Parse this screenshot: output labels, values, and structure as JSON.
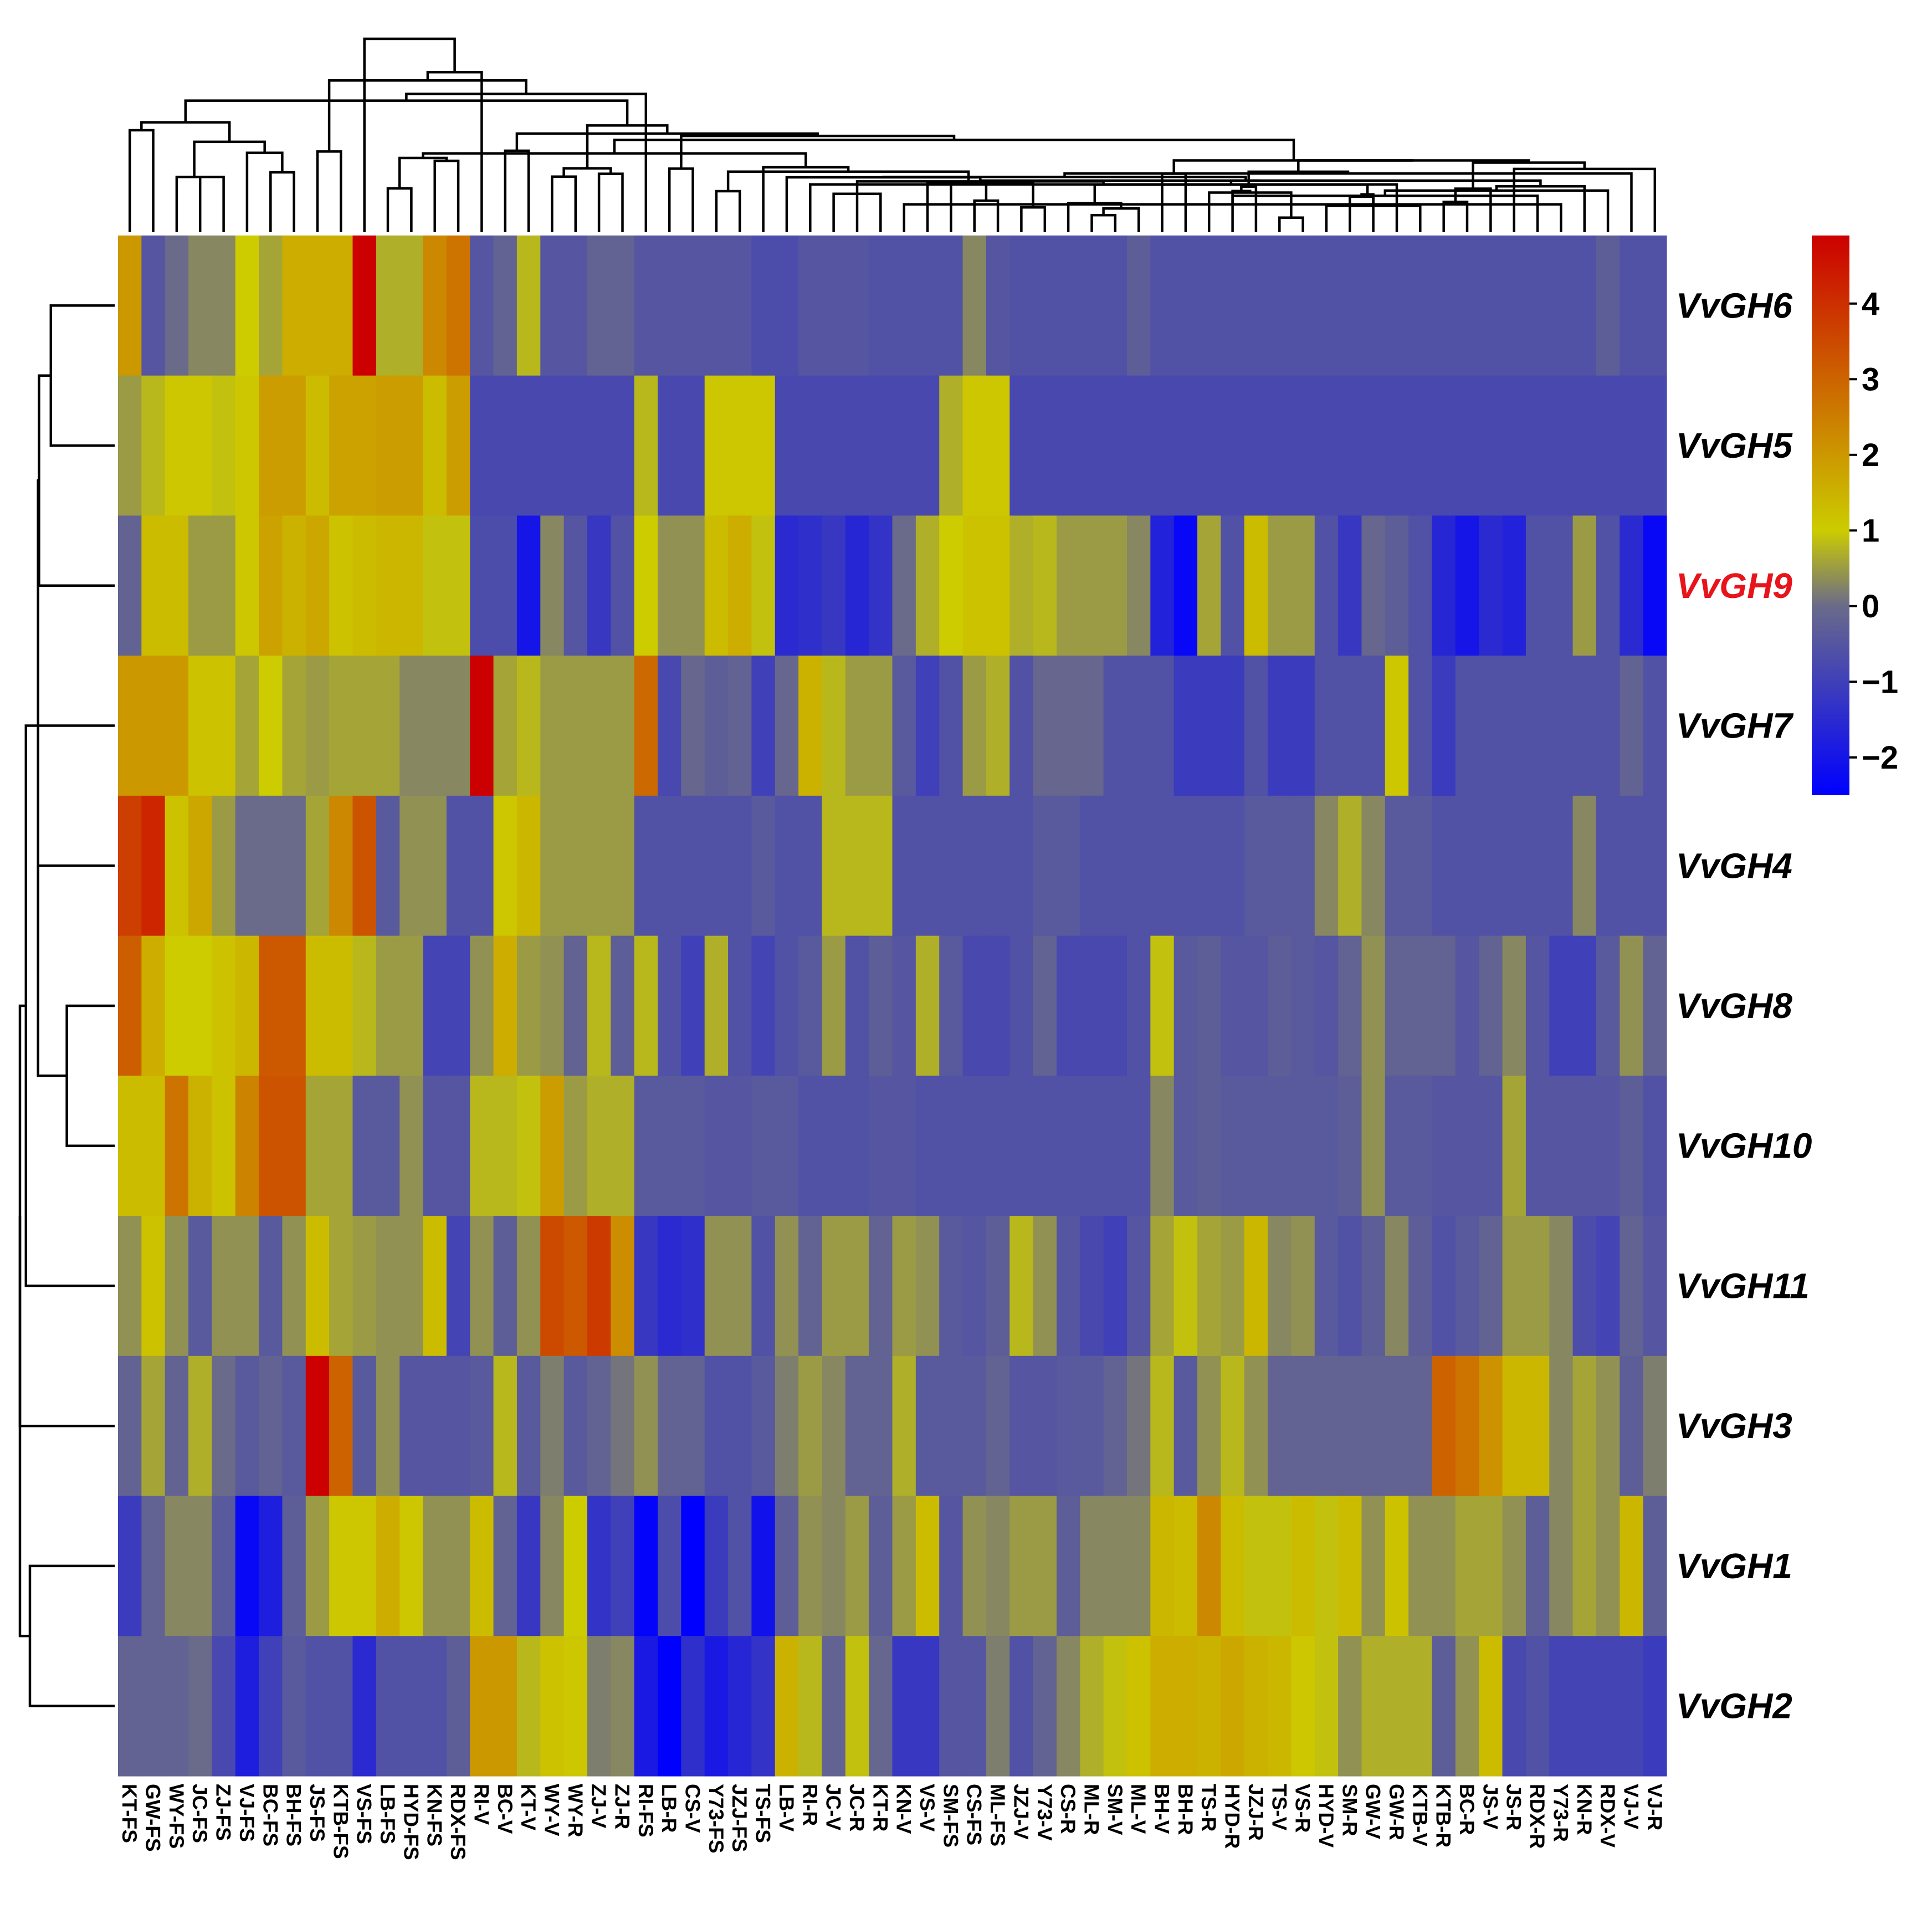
{
  "chart_data": {
    "type": "heatmap",
    "title": "",
    "rows": [
      "VvGH6",
      "VvGH5",
      "VvGH9",
      "VvGH7",
      "VvGH4",
      "VvGH8",
      "VvGH10",
      "VvGH11",
      "VvGH3",
      "VvGH1",
      "VvGH2"
    ],
    "highlighted_row": "VvGH9",
    "highlight_color": "#e8141b",
    "columns": [
      "KT-FS",
      "GW-FS",
      "WY-FS",
      "JC-FS",
      "ZJ-FS",
      "VJ-FS",
      "BC-FS",
      "BH-FS",
      "JS-FS",
      "KTB-FS",
      "VS-FS",
      "LB-FS",
      "HYD-FS",
      "KN-FS",
      "RDX-FS",
      "RI-V",
      "BC-V",
      "KT-V",
      "WY-V",
      "WY-R",
      "ZJ-V",
      "ZJ-R",
      "RI-FS",
      "LB-R",
      "CS-V",
      "Y73-FS",
      "JZJ-FS",
      "TS-FS",
      "LB-V",
      "RI-R",
      "JC-V",
      "JC-R",
      "KT-R",
      "KN-V",
      "VS-V",
      "SM-FS",
      "CS-FS",
      "ML-FS",
      "JZJ-V",
      "Y73-V",
      "CS-R",
      "ML-R",
      "SM-V",
      "ML-V",
      "BH-V",
      "BH-R",
      "TS-R",
      "HYD-R",
      "JZJ-R",
      "TS-V",
      "VS-R",
      "HYD-V",
      "SM-R",
      "GW-V",
      "GW-R",
      "KTB-V",
      "KTB-R",
      "BC-R",
      "JS-V",
      "JS-R",
      "RDX-R",
      "Y73-R",
      "KN-R",
      "RDX-V",
      "VJ-V",
      "VJ-R"
    ],
    "values": [
      [
        2,
        -0.5,
        0,
        0.3,
        0.3,
        1,
        0.6,
        1.6,
        1.6,
        1.6,
        5,
        0.7,
        0.7,
        2.3,
        2.7,
        -0.5,
        -0.2,
        0.8,
        -0.5,
        -0.5,
        -0.2,
        -0.2,
        -0.5,
        -0.5,
        -0.5,
        -0.5,
        -0.5,
        -0.7,
        -0.7,
        -0.5,
        -0.5,
        -0.5,
        -0.6,
        -0.6,
        -0.6,
        -0.6,
        0.3,
        -0.5,
        -0.6,
        -0.6,
        -0.6,
        -0.6,
        -0.6,
        -0.3,
        -0.6,
        -0.6,
        -0.6,
        -0.6,
        -0.6,
        -0.6,
        -0.6,
        -0.6,
        -0.6,
        -0.6,
        -0.6,
        -0.6,
        -0.6,
        -0.6,
        -0.6,
        -0.6,
        -0.6,
        -0.6,
        -0.6,
        -0.3,
        -0.6,
        -0.6
      ],
      [
        0.5,
        0.8,
        1.1,
        1.1,
        0.9,
        1.1,
        1.9,
        1.9,
        1.3,
        1.8,
        1.8,
        1.9,
        1.9,
        1.3,
        1.9,
        -0.8,
        -0.8,
        -0.8,
        -0.8,
        -0.8,
        -0.8,
        -0.8,
        0.8,
        -0.8,
        -0.8,
        1.1,
        1.1,
        1.1,
        -0.8,
        -0.8,
        -0.8,
        -0.8,
        -0.8,
        -0.8,
        -0.8,
        0.7,
        1.1,
        1.1,
        -0.8,
        -0.8,
        -0.8,
        -0.8,
        -0.8,
        -0.8,
        -0.8,
        -0.8,
        -0.8,
        -0.8,
        -0.8,
        -0.8,
        -0.8,
        -0.8,
        -0.8,
        -0.8,
        -0.8,
        -0.8,
        -0.8,
        -0.8,
        -0.8,
        -0.8,
        -0.8,
        -0.8,
        -0.8,
        -0.8,
        -0.8,
        -0.8
      ],
      [
        -0.2,
        1.3,
        1.3,
        0.5,
        0.5,
        1.1,
        1.8,
        1.5,
        1.7,
        1.2,
        1.3,
        1.4,
        1.4,
        0.9,
        0.9,
        -0.7,
        -0.7,
        -2,
        0.3,
        -0.5,
        -1.2,
        -0.6,
        1,
        0.4,
        0.4,
        1.3,
        1.6,
        0.9,
        -1.5,
        -1.4,
        -1.2,
        -1.6,
        -1.3,
        0,
        0.7,
        1,
        1.2,
        1.2,
        0.7,
        0.8,
        0.5,
        0.5,
        0.5,
        0.3,
        -1.7,
        -2.3,
        0.6,
        -0.6,
        1.3,
        0.5,
        0.5,
        -0.6,
        -1.2,
        -0.1,
        -0.3,
        -0.6,
        -1.6,
        -2,
        -1.5,
        -1.7,
        -0.6,
        -0.6,
        0.5,
        -0.6,
        -1.5,
        -2.3
      ],
      [
        2,
        2,
        2,
        1.2,
        1.2,
        0.6,
        1,
        0.6,
        0.5,
        0.6,
        0.6,
        0.6,
        0.3,
        0.3,
        0.3,
        5,
        0.6,
        0.8,
        0.5,
        0.5,
        0.5,
        0.5,
        2.9,
        -0.8,
        -0.1,
        -0.3,
        -0.2,
        -1,
        -0.1,
        1.5,
        0.8,
        0.5,
        0.5,
        -0.4,
        -1,
        -0.6,
        0.5,
        0.7,
        -0.6,
        -0.1,
        -0.1,
        -0.1,
        -0.6,
        -0.6,
        -0.6,
        -1.1,
        -1.1,
        -1.1,
        -0.6,
        -1.1,
        -1.1,
        -0.6,
        -0.6,
        -0.6,
        1.1,
        -0.6,
        -1.1,
        -0.6,
        -0.6,
        -0.6,
        -0.6,
        -0.6,
        -0.6,
        -0.6,
        -0.2,
        -0.6
      ],
      [
        3.7,
        4.2,
        1.2,
        1.7,
        0.5,
        0,
        0,
        0,
        0.6,
        2.3,
        3.3,
        -0.4,
        0.4,
        0.4,
        -0.6,
        -0.6,
        1.1,
        1.4,
        0.5,
        0.5,
        0.5,
        0.5,
        -0.6,
        -0.6,
        -0.6,
        -0.6,
        -0.6,
        -0.4,
        -0.6,
        -0.6,
        0.8,
        0.8,
        0.8,
        -0.6,
        -0.6,
        -0.6,
        -0.6,
        -0.6,
        -0.6,
        -0.4,
        -0.4,
        -0.6,
        -0.6,
        -0.6,
        -0.6,
        -0.6,
        -0.6,
        -0.6,
        -0.4,
        -0.4,
        -0.4,
        0.3,
        0.7,
        0.3,
        -0.4,
        -0.4,
        -0.6,
        -0.6,
        -0.6,
        -0.6,
        -0.6,
        -0.6,
        0.3,
        -0.6,
        -0.6,
        -0.6
      ],
      [
        3.1,
        1.6,
        1,
        1,
        1.2,
        1.4,
        3.2,
        3.2,
        1.3,
        1.3,
        0.8,
        0.5,
        0.5,
        -0.9,
        -0.9,
        0.4,
        1.6,
        0.5,
        0.4,
        -0.2,
        0.8,
        -0.3,
        0.8,
        -0.6,
        -1,
        0.7,
        -0.6,
        -0.9,
        -0.6,
        -0.4,
        0.5,
        -0.6,
        -0.3,
        -0.5,
        0.7,
        -0.4,
        -0.8,
        -0.8,
        -0.6,
        -0.2,
        -0.8,
        -0.8,
        -0.8,
        -0.6,
        0.9,
        -0.4,
        -0.3,
        -0.5,
        -0.5,
        -0.3,
        -0.4,
        -0.5,
        -0.2,
        0.4,
        -0.2,
        -0.2,
        -0.2,
        -0.5,
        -0.2,
        0.3,
        -0.5,
        -1,
        -1,
        -0.4,
        0.4,
        -0.2
      ],
      [
        1.3,
        1.3,
        2.7,
        1.5,
        1.2,
        2.4,
        3.3,
        3.3,
        0.6,
        0.6,
        -0.4,
        -0.4,
        0.4,
        -0.5,
        -0.5,
        0.8,
        0.8,
        0.9,
        1.9,
        0.5,
        0.7,
        0.7,
        -0.4,
        -0.4,
        -0.4,
        -0.5,
        -0.5,
        -0.4,
        -0.4,
        -0.6,
        -0.6,
        -0.6,
        -0.5,
        -0.5,
        -0.6,
        -0.6,
        -0.6,
        -0.6,
        -0.6,
        -0.6,
        -0.6,
        -0.6,
        -0.6,
        -0.6,
        0.3,
        -0.4,
        -0.3,
        -0.4,
        -0.4,
        -0.4,
        -0.4,
        -0.4,
        -0.3,
        0.4,
        -0.4,
        -0.4,
        -0.5,
        -0.5,
        -0.5,
        0.6,
        -0.5,
        -0.5,
        -0.5,
        -0.5,
        -0.3,
        -0.6
      ],
      [
        0.4,
        1.2,
        0.4,
        -0.4,
        0.4,
        0.4,
        -0.4,
        0.4,
        1.3,
        0.6,
        0.5,
        0.4,
        0.4,
        1.3,
        -0.9,
        0.4,
        -0.3,
        0.4,
        3.5,
        3.2,
        3.8,
        2.2,
        -1.2,
        -1.5,
        -1.4,
        0.4,
        0.4,
        -0.6,
        0.4,
        -0.2,
        0.5,
        0.5,
        -0.2,
        0.5,
        0.4,
        -0.4,
        -0.5,
        -0.3,
        0.8,
        0.4,
        -0.5,
        -0.8,
        -1,
        -0.5,
        0.6,
        0.9,
        0.6,
        0.5,
        1.4,
        0.3,
        0.4,
        -0.4,
        -0.6,
        -0.3,
        0.3,
        -0.3,
        -0.6,
        -0.4,
        -0.2,
        0.5,
        0.5,
        0.3,
        -0.7,
        -0.9,
        -0.2,
        -0.5
      ],
      [
        -0.2,
        0.6,
        -0.2,
        0.7,
        0,
        -0.4,
        -0.2,
        -0.4,
        5,
        3,
        -0.4,
        0.4,
        -0.5,
        -0.5,
        -0.5,
        -0.4,
        0.8,
        -0.4,
        0.2,
        -0.4,
        -0.2,
        0.1,
        0.4,
        -0.2,
        -0.2,
        -0.6,
        -0.6,
        -0.4,
        0.2,
        0.5,
        0.3,
        -0.2,
        -0.2,
        0.7,
        -0.4,
        -0.4,
        -0.4,
        -0.2,
        -0.5,
        -0.5,
        -0.4,
        -0.4,
        -0.2,
        0.1,
        0.8,
        -0.4,
        0.4,
        0.8,
        0.4,
        -0.2,
        -0.2,
        -0.2,
        -0.2,
        -0.2,
        -0.2,
        -0.2,
        3,
        2.7,
        2.1,
        1.4,
        1.4,
        0.3,
        0.6,
        0.4,
        -0.3,
        0.2
      ],
      [
        -1.1,
        -0.2,
        0.3,
        0.3,
        -0.4,
        -2.3,
        -1.8,
        -0.3,
        0.5,
        1.1,
        1.1,
        1.6,
        1.1,
        0.4,
        0.4,
        1.3,
        -0.2,
        -1.2,
        0.3,
        1,
        -1.3,
        -1,
        -2.4,
        -0.7,
        -2.5,
        -1.1,
        -0.6,
        -2.1,
        -0.3,
        0.4,
        0.3,
        0.5,
        -0.3,
        0.5,
        1.3,
        -0.5,
        0.4,
        0.3,
        0.5,
        0.5,
        -0.3,
        0.3,
        0.3,
        0.3,
        1.4,
        1.3,
        2.3,
        1.3,
        0.9,
        0.9,
        1.3,
        0.9,
        1.3,
        0.4,
        1.2,
        0.4,
        0.4,
        0.6,
        0.6,
        0.4,
        -0.3,
        0.3,
        0.6,
        0.4,
        1.4,
        -0.3
      ],
      [
        -0.2,
        -0.2,
        -0.2,
        0,
        -0.8,
        -1.8,
        -1,
        -0.4,
        -0.6,
        -0.6,
        -1.5,
        -0.6,
        -0.6,
        -0.6,
        -0.3,
        2,
        2,
        0.8,
        1.2,
        1.1,
        0.2,
        0.3,
        -1.9,
        -2.5,
        -1.4,
        -1.9,
        -1.6,
        -1.3,
        1.5,
        0.8,
        -0.2,
        0.9,
        -0.1,
        -1.2,
        -1.2,
        -0.5,
        -0.5,
        0.2,
        -0.6,
        -0.2,
        0.3,
        0.7,
        0.9,
        1.2,
        1.6,
        1.6,
        1.5,
        1.7,
        1.5,
        1.4,
        1.1,
        0.9,
        0.4,
        0.7,
        0.7,
        0.7,
        -0.3,
        0.4,
        1.3,
        -0.8,
        -0.6,
        -0.9,
        -0.9,
        -0.9,
        -0.9,
        -1.1
      ]
    ],
    "colorbar": {
      "ticks": [
        4,
        3,
        2,
        1,
        0,
        -1,
        -2
      ],
      "tick_labels": [
        "4",
        "3",
        "2",
        "1",
        "0",
        "−1",
        "−2"
      ],
      "range": [
        -2.5,
        4.9
      ],
      "colors": [
        "#0000ff",
        "#6a6a8a",
        "#cccc00",
        "#cc0000"
      ]
    },
    "dendrograms": [
      "rows (left)",
      "columns (top)"
    ]
  }
}
